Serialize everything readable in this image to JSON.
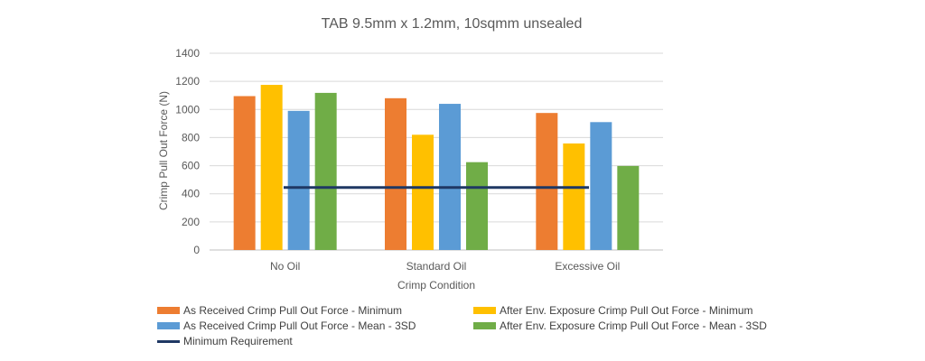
{
  "chart_data": {
    "type": "bar",
    "title": "TAB 9.5mm x 1.2mm, 10sqmm unsealed",
    "xlabel": "Crimp Condition",
    "ylabel": "Crimp Pull Out Force (N)",
    "ylim": [
      0,
      1400
    ],
    "yticks": [
      0,
      200,
      400,
      600,
      800,
      1000,
      1200,
      1400
    ],
    "categories": [
      "No Oil",
      "Standard Oil",
      "Excessive Oil"
    ],
    "series": [
      {
        "name": "As Received Crimp Pull Out Force - Minimum",
        "color": "#ED7D31",
        "values": [
          1095,
          1080,
          975
        ]
      },
      {
        "name": "After Env. Exposure Crimp Pull Out Force - Minimum",
        "color": "#FFC000",
        "values": [
          1175,
          820,
          758
        ]
      },
      {
        "name": "As Received Crimp Pull Out Force - Mean - 3SD",
        "color": "#5B9BD5",
        "values": [
          990,
          1040,
          910
        ]
      },
      {
        "name": "After Env. Exposure Crimp Pull Out Force - Mean - 3SD",
        "color": "#70AD47",
        "values": [
          1118,
          625,
          598
        ]
      }
    ],
    "line": {
      "name": "Minimum Requirement",
      "color": "#1F3864",
      "value": 445
    },
    "grid": true,
    "legend_position": "bottom"
  }
}
